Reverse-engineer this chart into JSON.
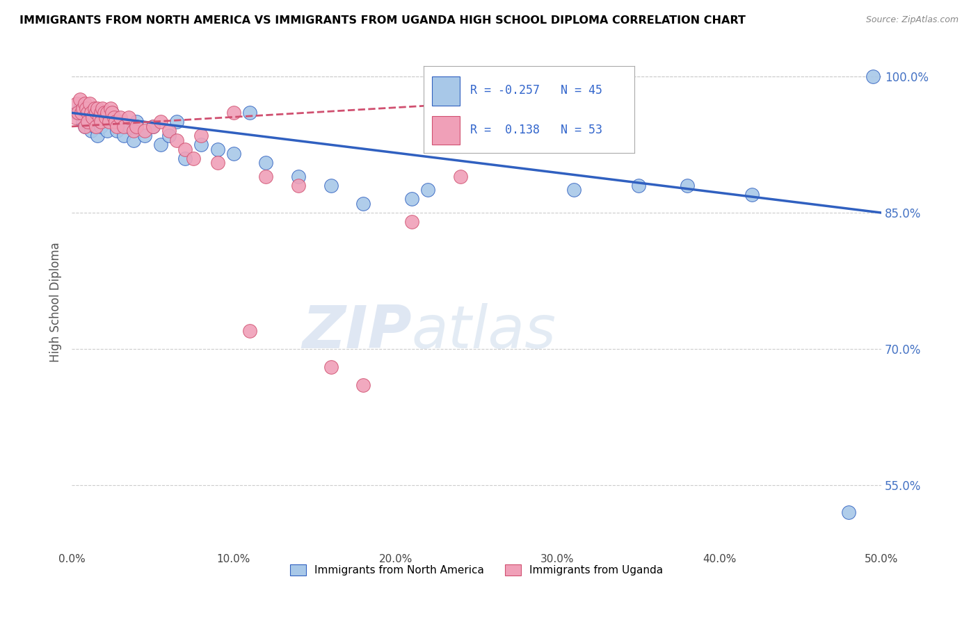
{
  "title": "IMMIGRANTS FROM NORTH AMERICA VS IMMIGRANTS FROM UGANDA HIGH SCHOOL DIPLOMA CORRELATION CHART",
  "source": "Source: ZipAtlas.com",
  "ylabel": "High School Diploma",
  "legend_label1": "Immigrants from North America",
  "legend_label2": "Immigrants from Uganda",
  "r1": "-0.257",
  "n1": "45",
  "r2": "0.138",
  "n2": "53",
  "xlim": [
    0.0,
    0.5
  ],
  "ylim": [
    0.478,
    1.025
  ],
  "yticks_grid": [
    0.55,
    0.7,
    0.85,
    1.0
  ],
  "yticks_right": [
    0.55,
    0.7,
    0.85,
    1.0
  ],
  "xticks": [
    0.0,
    0.1,
    0.2,
    0.3,
    0.4,
    0.5
  ],
  "color_blue": "#a8c8e8",
  "color_pink": "#f0a0b8",
  "line_blue": "#3060c0",
  "line_pink": "#d05070",
  "watermark_zip": "ZIP",
  "watermark_atlas": "atlas",
  "blue_scatter_x": [
    0.003,
    0.005,
    0.007,
    0.008,
    0.01,
    0.011,
    0.012,
    0.013,
    0.014,
    0.015,
    0.016,
    0.017,
    0.018,
    0.02,
    0.022,
    0.025,
    0.028,
    0.03,
    0.032,
    0.035,
    0.038,
    0.04,
    0.045,
    0.05,
    0.055,
    0.06,
    0.065,
    0.07,
    0.08,
    0.09,
    0.1,
    0.11,
    0.12,
    0.14,
    0.16,
    0.18,
    0.21,
    0.22,
    0.28,
    0.31,
    0.35,
    0.38,
    0.42,
    0.48,
    0.495
  ],
  "blue_scatter_y": [
    0.96,
    0.965,
    0.95,
    0.945,
    0.955,
    0.96,
    0.94,
    0.955,
    0.945,
    0.96,
    0.935,
    0.95,
    0.945,
    0.955,
    0.94,
    0.96,
    0.94,
    0.95,
    0.935,
    0.945,
    0.93,
    0.95,
    0.935,
    0.945,
    0.925,
    0.935,
    0.95,
    0.91,
    0.925,
    0.92,
    0.915,
    0.96,
    0.905,
    0.89,
    0.88,
    0.86,
    0.865,
    0.875,
    0.925,
    0.875,
    0.88,
    0.88,
    0.87,
    0.52,
    1.0
  ],
  "pink_scatter_x": [
    0.002,
    0.003,
    0.004,
    0.005,
    0.006,
    0.007,
    0.008,
    0.008,
    0.009,
    0.01,
    0.01,
    0.011,
    0.012,
    0.013,
    0.014,
    0.015,
    0.015,
    0.016,
    0.017,
    0.018,
    0.018,
    0.019,
    0.02,
    0.021,
    0.022,
    0.023,
    0.024,
    0.025,
    0.026,
    0.027,
    0.028,
    0.03,
    0.032,
    0.035,
    0.038,
    0.04,
    0.045,
    0.05,
    0.055,
    0.06,
    0.065,
    0.07,
    0.075,
    0.08,
    0.09,
    0.1,
    0.11,
    0.12,
    0.14,
    0.16,
    0.18,
    0.21,
    0.24
  ],
  "pink_scatter_y": [
    0.955,
    0.97,
    0.96,
    0.975,
    0.96,
    0.965,
    0.97,
    0.945,
    0.965,
    0.96,
    0.95,
    0.97,
    0.96,
    0.955,
    0.965,
    0.96,
    0.945,
    0.965,
    0.955,
    0.96,
    0.95,
    0.965,
    0.96,
    0.955,
    0.96,
    0.95,
    0.965,
    0.96,
    0.955,
    0.95,
    0.945,
    0.955,
    0.945,
    0.955,
    0.94,
    0.945,
    0.94,
    0.945,
    0.95,
    0.94,
    0.93,
    0.92,
    0.91,
    0.935,
    0.905,
    0.96,
    0.72,
    0.89,
    0.88,
    0.68,
    0.66,
    0.84,
    0.89
  ],
  "blue_line_x": [
    0.0,
    0.5
  ],
  "blue_line_y": [
    0.96,
    0.85
  ],
  "pink_line_x": [
    0.0,
    0.24
  ],
  "pink_line_y": [
    0.945,
    0.97
  ]
}
